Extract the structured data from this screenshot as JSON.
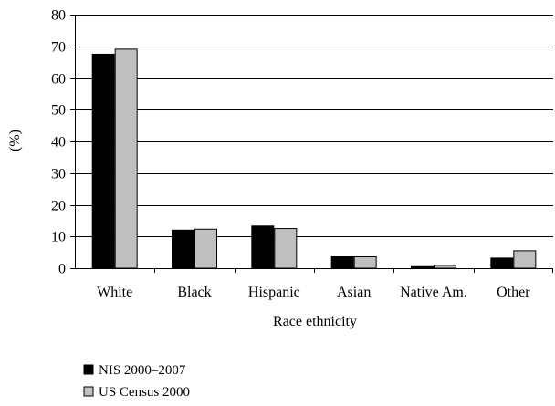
{
  "chart_data": {
    "type": "bar",
    "ylabel": "(%)",
    "xlabel": "Race ethnicity",
    "ylim": [
      0,
      80
    ],
    "yticks": [
      0,
      10,
      20,
      30,
      40,
      50,
      60,
      70,
      80
    ],
    "grid": "horizontal",
    "legend_position": "bottom-left",
    "categories": [
      "White",
      "Black",
      "Hispanic",
      "Asian",
      "Native Am.",
      "Other"
    ],
    "series": [
      {
        "name": "NIS 2000–2007",
        "color": "#000000",
        "values": [
          67.5,
          12.0,
          13.3,
          3.6,
          0.5,
          3.2
        ]
      },
      {
        "name": "US Census 2000",
        "color": "#bfbfbf",
        "values": [
          69.1,
          12.3,
          12.5,
          3.6,
          0.9,
          5.5
        ]
      }
    ]
  }
}
